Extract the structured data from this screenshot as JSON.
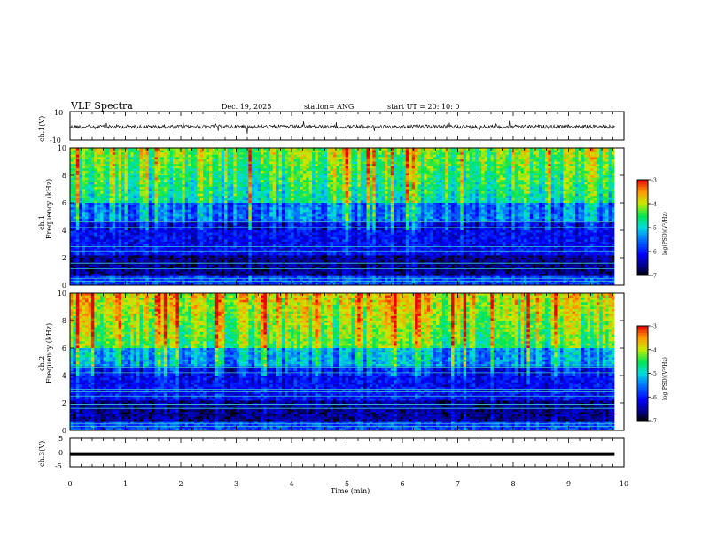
{
  "header": {
    "title": "VLF Spectra",
    "date": "Dec. 19, 2025",
    "station": "station= ANG",
    "start_ut": "start  UT =   20: 10: 0"
  },
  "chart_data": [
    {
      "type": "line",
      "name": "ch1-waveform",
      "ylabel": "ch.1(V)",
      "ylim": [
        -10,
        10
      ],
      "yticks": [
        "10",
        "-10"
      ],
      "description_level_V": 0,
      "xlim": [
        0,
        9.83
      ]
    },
    {
      "type": "heatmap",
      "name": "ch1-spectrogram",
      "ylabel_line1": "ch.1",
      "ylabel_line2": "Frequency  (kHz)",
      "ylim_kHz": [
        0,
        10
      ],
      "yticks": [
        "0",
        "2",
        "4",
        "6",
        "8",
        "10"
      ],
      "xlim_min": [
        0,
        9.83
      ],
      "colorbar": {
        "label": "log(PSD)(V²/Hz)",
        "range": [
          -7,
          -3
        ],
        "ticks": [
          "-3",
          "-4",
          "-5",
          "-6",
          "-7"
        ]
      }
    },
    {
      "type": "heatmap",
      "name": "ch2-spectrogram",
      "ylabel_line1": "ch.2",
      "ylabel_line2": "Frequency  (kHz)",
      "ylim_kHz": [
        0,
        10
      ],
      "yticks": [
        "0",
        "2",
        "4",
        "6",
        "8",
        "10"
      ],
      "xlim_min": [
        0,
        9.83
      ],
      "colorbar": {
        "label": "log(PSD)(V²/Hz)",
        "range": [
          -7,
          -3
        ],
        "ticks": [
          "-3",
          "-4",
          "-5",
          "-6",
          "-7"
        ]
      }
    },
    {
      "type": "line",
      "name": "ch3-waveform",
      "ylabel": "ch.3(V)",
      "ylim": [
        -5,
        5
      ],
      "yticks": [
        "5",
        "0",
        "-5"
      ],
      "level_V": -0.5,
      "xlim": [
        0,
        9.83
      ]
    }
  ],
  "xaxis": {
    "label": "Time  (min)",
    "ticks": [
      "0",
      "1",
      "2",
      "3",
      "4",
      "5",
      "6",
      "7",
      "8",
      "9",
      "10"
    ],
    "range": [
      0,
      10
    ]
  }
}
